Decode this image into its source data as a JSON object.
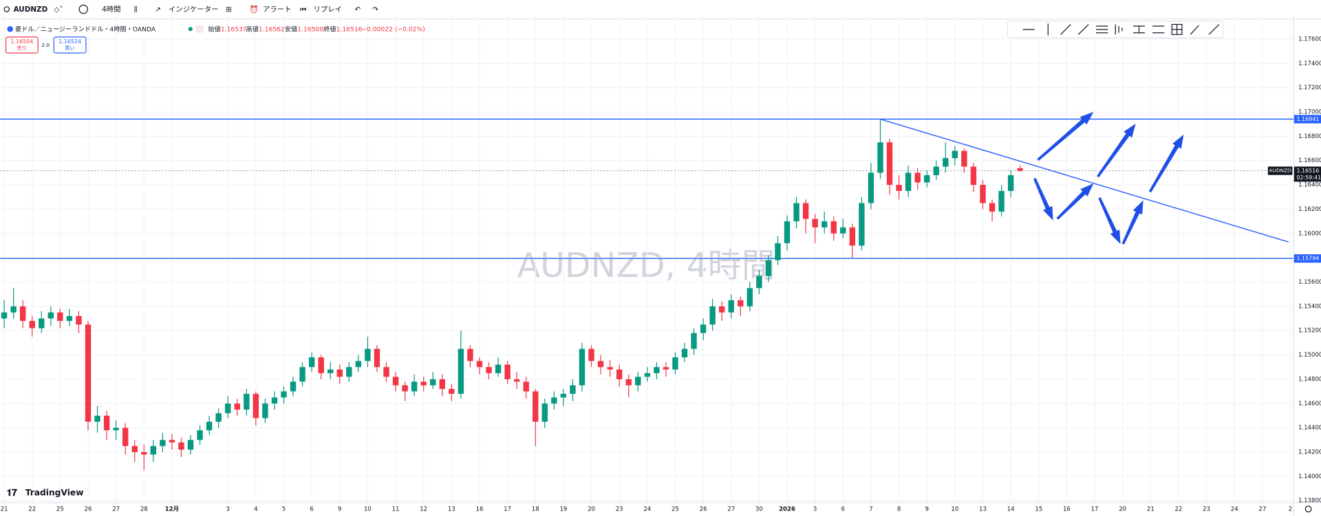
{
  "toolbar": {
    "symbol": "AUDNZD",
    "interval": "4時間",
    "indicators": "インジケーター",
    "alert": "アラート",
    "replay": "リプレイ"
  },
  "header": {
    "title": "豪ドル／ニュージーランドドル・4時間・OANDA",
    "open_label": "始値",
    "open": "1.16537",
    "high_label": "高値",
    "high": "1.16562",
    "low_label": "安値",
    "low": "1.16508",
    "close_label": "終値",
    "close": "1.16516",
    "change": "−0.00022 (−0.02%)",
    "sell_price": "1.16504",
    "sell": "売り",
    "spread": "2.0",
    "buy_price": "1.16524",
    "buy": "買い"
  },
  "watermark": "AUDNZD, 4時間",
  "logo": "TradingView",
  "chart_data": {
    "type": "candlestick",
    "up_color": "#089981",
    "down_color": "#f23645",
    "grid": true,
    "ohlc": [
      [
        1.153,
        1.1545,
        1.1522,
        1.1535
      ],
      [
        1.1535,
        1.1555,
        1.153,
        1.154
      ],
      [
        1.154,
        1.1545,
        1.1522,
        1.1528
      ],
      [
        1.1528,
        1.1532,
        1.1515,
        1.1522
      ],
      [
        1.1522,
        1.1536,
        1.1518,
        1.153
      ],
      [
        1.153,
        1.154,
        1.1524,
        1.1535
      ],
      [
        1.1535,
        1.1538,
        1.1522,
        1.1528
      ],
      [
        1.1528,
        1.1538,
        1.1524,
        1.1532
      ],
      [
        1.1532,
        1.1536,
        1.1518,
        1.1525
      ],
      [
        1.1525,
        1.1528,
        1.1438,
        1.1445
      ],
      [
        1.1445,
        1.1458,
        1.1436,
        1.145
      ],
      [
        1.145,
        1.1454,
        1.143,
        1.1438
      ],
      [
        1.1438,
        1.1446,
        1.143,
        1.144
      ],
      [
        1.144,
        1.1444,
        1.1418,
        1.1425
      ],
      [
        1.1425,
        1.143,
        1.1412,
        1.142
      ],
      [
        1.142,
        1.1426,
        1.1405,
        1.1418
      ],
      [
        1.1418,
        1.143,
        1.1412,
        1.1425
      ],
      [
        1.1425,
        1.1436,
        1.142,
        1.143
      ],
      [
        1.143,
        1.1435,
        1.1422,
        1.1428
      ],
      [
        1.1428,
        1.1432,
        1.1416,
        1.1422
      ],
      [
        1.1422,
        1.1434,
        1.1418,
        1.143
      ],
      [
        1.143,
        1.1442,
        1.1426,
        1.1438
      ],
      [
        1.1438,
        1.145,
        1.1434,
        1.1445
      ],
      [
        1.1445,
        1.1456,
        1.144,
        1.1452
      ],
      [
        1.1452,
        1.1466,
        1.1448,
        1.146
      ],
      [
        1.146,
        1.1464,
        1.145,
        1.1455
      ],
      [
        1.1455,
        1.1472,
        1.145,
        1.1468
      ],
      [
        1.1468,
        1.147,
        1.1442,
        1.1448
      ],
      [
        1.1448,
        1.1464,
        1.1444,
        1.146
      ],
      [
        1.146,
        1.147,
        1.1455,
        1.1465
      ],
      [
        1.1465,
        1.1474,
        1.146,
        1.147
      ],
      [
        1.147,
        1.1482,
        1.1466,
        1.1478
      ],
      [
        1.1478,
        1.1494,
        1.1474,
        1.149
      ],
      [
        1.149,
        1.1502,
        1.1486,
        1.1498
      ],
      [
        1.1498,
        1.15,
        1.148,
        1.1485
      ],
      [
        1.1485,
        1.1494,
        1.148,
        1.1488
      ],
      [
        1.1488,
        1.1492,
        1.1476,
        1.1482
      ],
      [
        1.1482,
        1.1494,
        1.1478,
        1.149
      ],
      [
        1.149,
        1.15,
        1.1486,
        1.1495
      ],
      [
        1.1495,
        1.1515,
        1.149,
        1.1505
      ],
      [
        1.1505,
        1.1508,
        1.1486,
        1.149
      ],
      [
        1.149,
        1.1494,
        1.1478,
        1.1482
      ],
      [
        1.1482,
        1.1486,
        1.147,
        1.1475
      ],
      [
        1.1475,
        1.1478,
        1.1462,
        1.147
      ],
      [
        1.147,
        1.1484,
        1.1466,
        1.1478
      ],
      [
        1.1478,
        1.1482,
        1.147,
        1.1475
      ],
      [
        1.1475,
        1.1486,
        1.1472,
        1.148
      ],
      [
        1.148,
        1.1484,
        1.1466,
        1.1472
      ],
      [
        1.1472,
        1.1476,
        1.1462,
        1.1468
      ],
      [
        1.1468,
        1.152,
        1.1464,
        1.1505
      ],
      [
        1.1505,
        1.1508,
        1.149,
        1.1495
      ],
      [
        1.1495,
        1.1498,
        1.1484,
        1.149
      ],
      [
        1.149,
        1.1494,
        1.148,
        1.1485
      ],
      [
        1.1485,
        1.1498,
        1.1482,
        1.1492
      ],
      [
        1.1492,
        1.1495,
        1.1476,
        1.148
      ],
      [
        1.148,
        1.1486,
        1.1472,
        1.1478
      ],
      [
        1.1478,
        1.1482,
        1.1464,
        1.147
      ],
      [
        1.147,
        1.1472,
        1.1425,
        1.1445
      ],
      [
        1.1445,
        1.1464,
        1.144,
        1.146
      ],
      [
        1.146,
        1.147,
        1.1455,
        1.1465
      ],
      [
        1.1465,
        1.1472,
        1.1458,
        1.1468
      ],
      [
        1.1468,
        1.148,
        1.1462,
        1.1475
      ],
      [
        1.1475,
        1.151,
        1.147,
        1.1505
      ],
      [
        1.1505,
        1.1508,
        1.149,
        1.1495
      ],
      [
        1.1495,
        1.15,
        1.1484,
        1.149
      ],
      [
        1.149,
        1.1496,
        1.1482,
        1.1488
      ],
      [
        1.1488,
        1.1492,
        1.1474,
        1.148
      ],
      [
        1.148,
        1.1484,
        1.1465,
        1.1475
      ],
      [
        1.1475,
        1.1486,
        1.147,
        1.1482
      ],
      [
        1.1482,
        1.149,
        1.1478,
        1.1485
      ],
      [
        1.1485,
        1.1494,
        1.148,
        1.149
      ],
      [
        1.149,
        1.1494,
        1.1482,
        1.1488
      ],
      [
        1.1488,
        1.1502,
        1.1484,
        1.1498
      ],
      [
        1.1498,
        1.151,
        1.1494,
        1.1505
      ],
      [
        1.1505,
        1.1522,
        1.15,
        1.1518
      ],
      [
        1.1518,
        1.153,
        1.1512,
        1.1525
      ],
      [
        1.1525,
        1.1546,
        1.152,
        1.154
      ],
      [
        1.154,
        1.1544,
        1.1528,
        1.1535
      ],
      [
        1.1535,
        1.155,
        1.153,
        1.1545
      ],
      [
        1.1545,
        1.1548,
        1.1532,
        1.154
      ],
      [
        1.154,
        1.156,
        1.1536,
        1.1555
      ],
      [
        1.1555,
        1.157,
        1.155,
        1.1565
      ],
      [
        1.1565,
        1.1582,
        1.156,
        1.1578
      ],
      [
        1.1578,
        1.1598,
        1.1574,
        1.1592
      ],
      [
        1.1592,
        1.1615,
        1.1586,
        1.161
      ],
      [
        1.161,
        1.163,
        1.1604,
        1.1625
      ],
      [
        1.1625,
        1.1628,
        1.16,
        1.1612
      ],
      [
        1.1612,
        1.1616,
        1.1592,
        1.1605
      ],
      [
        1.1605,
        1.1618,
        1.16,
        1.161
      ],
      [
        1.161,
        1.1614,
        1.1594,
        1.16
      ],
      [
        1.16,
        1.1612,
        1.1596,
        1.1605
      ],
      [
        1.1605,
        1.1608,
        1.158,
        1.159
      ],
      [
        1.159,
        1.163,
        1.1586,
        1.1625
      ],
      [
        1.1625,
        1.1658,
        1.162,
        1.165
      ],
      [
        1.165,
        1.16941,
        1.1645,
        1.1675
      ],
      [
        1.1675,
        1.1678,
        1.1632,
        1.164
      ],
      [
        1.164,
        1.1648,
        1.1628,
        1.1635
      ],
      [
        1.1635,
        1.1656,
        1.163,
        1.165
      ],
      [
        1.165,
        1.1654,
        1.1636,
        1.1642
      ],
      [
        1.1642,
        1.1652,
        1.1638,
        1.1648
      ],
      [
        1.1648,
        1.166,
        1.1644,
        1.1655
      ],
      [
        1.1655,
        1.1675,
        1.165,
        1.1662
      ],
      [
        1.1662,
        1.1672,
        1.1656,
        1.1668
      ],
      [
        1.1668,
        1.167,
        1.165,
        1.1655
      ],
      [
        1.1655,
        1.1658,
        1.1634,
        1.164
      ],
      [
        1.164,
        1.1644,
        1.162,
        1.1625
      ],
      [
        1.1625,
        1.1628,
        1.161,
        1.1618
      ],
      [
        1.1618,
        1.164,
        1.1614,
        1.1635
      ],
      [
        1.1635,
        1.1652,
        1.163,
        1.1648
      ],
      [
        1.16537,
        1.16562,
        1.16508,
        1.16516
      ]
    ],
    "xlim": [
      -0.45,
      138.3
    ],
    "xticks": [
      {
        "value": 0,
        "label": "21"
      },
      {
        "value": 3,
        "label": "22"
      },
      {
        "value": 6,
        "label": "25"
      },
      {
        "value": 9,
        "label": "26"
      },
      {
        "value": 12,
        "label": "27"
      },
      {
        "value": 15,
        "label": "28"
      },
      {
        "value": 18,
        "label": "12月"
      },
      {
        "value": 24,
        "label": "3"
      },
      {
        "value": 27,
        "label": "4"
      },
      {
        "value": 30,
        "label": "5"
      },
      {
        "value": 33,
        "label": "6"
      },
      {
        "value": 36,
        "label": "9"
      },
      {
        "value": 39,
        "label": "10"
      },
      {
        "value": 42,
        "label": "11"
      },
      {
        "value": 45,
        "label": "12"
      },
      {
        "value": 48,
        "label": "13"
      },
      {
        "value": 51,
        "label": "16"
      },
      {
        "value": 54,
        "label": "17"
      },
      {
        "value": 57,
        "label": "18"
      },
      {
        "value": 60,
        "label": "19"
      },
      {
        "value": 63,
        "label": "20"
      },
      {
        "value": 66,
        "label": "23"
      },
      {
        "value": 69,
        "label": "24"
      },
      {
        "value": 72,
        "label": "25"
      },
      {
        "value": 75,
        "label": "26"
      },
      {
        "value": 78,
        "label": "27"
      },
      {
        "value": 81,
        "label": "30"
      },
      {
        "value": 84,
        "label": "2026"
      },
      {
        "value": 87,
        "label": "3"
      },
      {
        "value": 90,
        "label": "6"
      },
      {
        "value": 93,
        "label": "7"
      },
      {
        "value": 96,
        "label": "8"
      },
      {
        "value": 99,
        "label": "9"
      },
      {
        "value": 102,
        "label": "10"
      },
      {
        "value": 105,
        "label": "13"
      },
      {
        "value": 108,
        "label": "14"
      },
      {
        "value": 111,
        "label": "15"
      },
      {
        "value": 114,
        "label": "16"
      },
      {
        "value": 117,
        "label": "17"
      },
      {
        "value": 120,
        "label": "20"
      },
      {
        "value": 123,
        "label": "21"
      },
      {
        "value": 126,
        "label": "22"
      },
      {
        "value": 129,
        "label": "23"
      },
      {
        "value": 132,
        "label": "24"
      },
      {
        "value": 135,
        "label": "27"
      },
      {
        "value": 138,
        "label": "2"
      }
    ],
    "ylim": [
      1.13787,
      1.17766
    ],
    "yticks": [
      {
        "value": 1.138,
        "label": "1.13800"
      },
      {
        "value": 1.14,
        "label": "1.14000"
      },
      {
        "value": 1.142,
        "label": "1.14200"
      },
      {
        "value": 1.144,
        "label": "1.14400"
      },
      {
        "value": 1.146,
        "label": "1.14600"
      },
      {
        "value": 1.148,
        "label": "1.14800"
      },
      {
        "value": 1.15,
        "label": "1.15000"
      },
      {
        "value": 1.152,
        "label": "1.15200"
      },
      {
        "value": 1.154,
        "label": "1.15400"
      },
      {
        "value": 1.156,
        "label": "1.15600"
      },
      {
        "value": 1.158,
        "label": "1.15800"
      },
      {
        "value": 1.16,
        "label": "1.16000"
      },
      {
        "value": 1.162,
        "label": "1.16200"
      },
      {
        "value": 1.164,
        "label": "1.16400"
      },
      {
        "value": 1.166,
        "label": "1.16600"
      },
      {
        "value": 1.168,
        "label": "1.16800"
      },
      {
        "value": 1.17,
        "label": "1.17000"
      },
      {
        "value": 1.172,
        "label": "1.17200"
      },
      {
        "value": 1.174,
        "label": "1.17400"
      },
      {
        "value": 1.176,
        "label": "1.17600"
      }
    ],
    "hlines": {
      "values": [
        1.16941,
        1.15794
      ],
      "value_labels": [
        "1.16941",
        "1.15794"
      ],
      "color": "#2962ff"
    },
    "trendline": {
      "x": [
        94,
        137.8
      ],
      "y": [
        1.16941,
        1.1593
      ],
      "color": "#2962ff"
    },
    "last_price": {
      "value": 1.16516,
      "label": "1.16516",
      "symbol": "AUDNZD",
      "countdown": "02:59:41"
    }
  }
}
